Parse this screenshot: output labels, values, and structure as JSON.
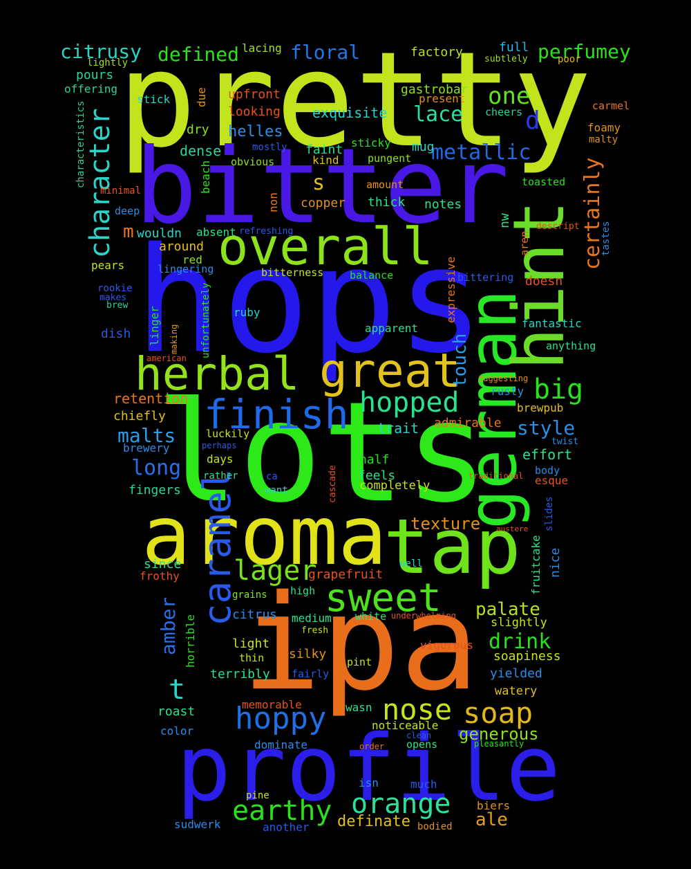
{
  "background": "#000000",
  "words": [
    {
      "text": "pretty",
      "color": "#c2e41c"
    },
    {
      "text": "bitter",
      "color": "#4a18e4"
    },
    {
      "text": "hops",
      "color": "#2418ea"
    },
    {
      "text": "lots",
      "color": "#2ee91a"
    },
    {
      "text": "ipa",
      "color": "#e86e1c"
    },
    {
      "text": "profile",
      "color": "#2a1ee8"
    },
    {
      "text": "aroma",
      "color": "#e2e21a"
    },
    {
      "text": "tap",
      "color": "#6ee21a"
    },
    {
      "text": "german",
      "color": "#28e826"
    },
    {
      "text": "hint",
      "color": "#6cdc2a"
    },
    {
      "text": "overall",
      "color": "#8ee21c"
    },
    {
      "text": "herbal",
      "color": "#94e21c"
    },
    {
      "text": "great",
      "color": "#e2c21c"
    },
    {
      "text": "finish",
      "color": "#1e6ae8"
    },
    {
      "text": "caramel",
      "color": "#2a5ae8"
    },
    {
      "text": "sweet",
      "color": "#4ee21c"
    },
    {
      "text": "hopped",
      "color": "#2ae28e"
    },
    {
      "text": "lager",
      "color": "#7ae21c"
    },
    {
      "text": "character",
      "color": "#2ad4c8"
    },
    {
      "text": "hoppy",
      "color": "#1e70e4"
    },
    {
      "text": "nose",
      "color": "#c8e21c"
    },
    {
      "text": "soap",
      "color": "#e2b81c"
    },
    {
      "text": "orange",
      "color": "#2ae29a"
    },
    {
      "text": "earthy",
      "color": "#2ae21c"
    },
    {
      "text": "big",
      "color": "#2ae21c"
    },
    {
      "text": "one",
      "color": "#62e21c"
    },
    {
      "text": "metallic",
      "color": "#1e6ae8"
    },
    {
      "text": "certainly",
      "color": "#e8761c"
    },
    {
      "text": "citrusy",
      "color": "#2ad4c0"
    },
    {
      "text": "defined",
      "color": "#2ae21c"
    },
    {
      "text": "floral",
      "color": "#1e7ae8"
    },
    {
      "text": "perfumey",
      "color": "#2ae21c"
    },
    {
      "text": "lace",
      "color": "#2ae2a0"
    },
    {
      "text": "malts",
      "color": "#2a9ee8"
    },
    {
      "text": "long",
      "color": "#2a6ee8"
    },
    {
      "text": "palate",
      "color": "#b8e21c"
    },
    {
      "text": "drink",
      "color": "#2ae21c"
    },
    {
      "text": "style",
      "color": "#2a8ee8"
    },
    {
      "text": "amber",
      "color": "#2a6ee8"
    },
    {
      "text": "touch",
      "color": "#2a9ee8"
    },
    {
      "text": "texture",
      "color": "#e2921c"
    },
    {
      "text": "ale",
      "color": "#e2a01c"
    },
    {
      "text": "generous",
      "color": "#8ee21c"
    },
    {
      "text": "definate",
      "color": "#e2c01c"
    },
    {
      "text": "t",
      "color": "#2ad4c8"
    },
    {
      "text": "m",
      "color": "#e8761c"
    },
    {
      "text": "d",
      "color": "#2a3ae8"
    },
    {
      "text": "s",
      "color": "#e2c01c"
    },
    {
      "text": "helles",
      "color": "#2a8ee8"
    },
    {
      "text": "exquisite",
      "color": "#2ad4c8"
    },
    {
      "text": "upfront",
      "color": "#e8521c"
    },
    {
      "text": "looking",
      "color": "#e8521c"
    },
    {
      "text": "factory",
      "color": "#b8e21c"
    },
    {
      "text": "full",
      "color": "#2ab8e8"
    },
    {
      "text": "subtlely",
      "color": "#9ee21c"
    },
    {
      "text": "poor",
      "color": "#e2b81c"
    },
    {
      "text": "lacing",
      "color": "#9ee21c"
    },
    {
      "text": "lightly",
      "color": "#9ee21c"
    },
    {
      "text": "pours",
      "color": "#2ad4a0"
    },
    {
      "text": "offering",
      "color": "#2ad4a0"
    },
    {
      "text": "stick",
      "color": "#2ad4c8"
    },
    {
      "text": "due",
      "color": "#e2921c"
    },
    {
      "text": "gastrobar",
      "color": "#8ee21c"
    },
    {
      "text": "present",
      "color": "#e2921c"
    },
    {
      "text": "cheers",
      "color": "#2ad4a0"
    },
    {
      "text": "carmel",
      "color": "#e8761c"
    },
    {
      "text": "foamy",
      "color": "#e2921c"
    },
    {
      "text": "malty",
      "color": "#e2921c"
    },
    {
      "text": "dry",
      "color": "#8ee21c"
    },
    {
      "text": "dense",
      "color": "#2ad4a0"
    },
    {
      "text": "mostly",
      "color": "#2a5ae8"
    },
    {
      "text": "obvious",
      "color": "#8ee21c"
    },
    {
      "text": "faint",
      "color": "#2ae28e"
    },
    {
      "text": "kind",
      "color": "#e2c01c"
    },
    {
      "text": "sticky",
      "color": "#2ae21c"
    },
    {
      "text": "pungent",
      "color": "#8ee21c"
    },
    {
      "text": "mug",
      "color": "#2ad4c8"
    },
    {
      "text": "characteristics",
      "color": "#2ad4a0"
    },
    {
      "text": "minimal",
      "color": "#e8521c"
    },
    {
      "text": "beach",
      "color": "#2ae21c"
    },
    {
      "text": "non",
      "color": "#e8761c"
    },
    {
      "text": "copper",
      "color": "#e2921c"
    },
    {
      "text": "amount",
      "color": "#e2921c"
    },
    {
      "text": "thick",
      "color": "#2ae28e"
    },
    {
      "text": "toasted",
      "color": "#2ae21c"
    },
    {
      "text": "nw",
      "color": "#2ae28e"
    },
    {
      "text": "notes",
      "color": "#2ae28e"
    },
    {
      "text": "deep",
      "color": "#2a8ee8"
    },
    {
      "text": "wouldn",
      "color": "#2ad4c8"
    },
    {
      "text": "absent",
      "color": "#2ae28e"
    },
    {
      "text": "refreshing",
      "color": "#2a5ae8"
    },
    {
      "text": "descript",
      "color": "#e8521c"
    },
    {
      "text": "tastes",
      "color": "#2a8ee8"
    },
    {
      "text": "aren",
      "color": "#e8761c"
    },
    {
      "text": "around",
      "color": "#e2c01c"
    },
    {
      "text": "red",
      "color": "#8ee21c"
    },
    {
      "text": "pears",
      "color": "#c8e21c"
    },
    {
      "text": "lingering",
      "color": "#2a8ee8"
    },
    {
      "text": "bitterness",
      "color": "#c8e21c"
    },
    {
      "text": "balance",
      "color": "#2ae21c"
    },
    {
      "text": "expressive",
      "color": "#e8761c"
    },
    {
      "text": "bittering",
      "color": "#2a5ae8"
    },
    {
      "text": "doesn",
      "color": "#e8521c"
    },
    {
      "text": "rookie",
      "color": "#2a5ae8"
    },
    {
      "text": "makes",
      "color": "#2a5ae8"
    },
    {
      "text": "brew",
      "color": "#2ad4a0"
    },
    {
      "text": "unfortunately",
      "color": "#2ae21c"
    },
    {
      "text": "ruby",
      "color": "#2ad4c8"
    },
    {
      "text": "dish",
      "color": "#2a5ae8"
    },
    {
      "text": "linger",
      "color": "#2ae21c"
    },
    {
      "text": "making",
      "color": "#e2921c"
    },
    {
      "text": "american",
      "color": "#e8521c"
    },
    {
      "text": "apparent",
      "color": "#2ae28e"
    },
    {
      "text": "fantastic",
      "color": "#2ad4c8"
    },
    {
      "text": "anything",
      "color": "#2ae28e"
    },
    {
      "text": "suggesting",
      "color": "#e2921c"
    },
    {
      "text": "retention",
      "color": "#e8761c"
    },
    {
      "text": "rusty",
      "color": "#2a8ee8"
    },
    {
      "text": "brewpub",
      "color": "#e2c01c"
    },
    {
      "text": "chiefly",
      "color": "#e2c01c"
    },
    {
      "text": "admirable",
      "color": "#e8761c"
    },
    {
      "text": "trait",
      "color": "#2ad4c8"
    },
    {
      "text": "luckily",
      "color": "#c8e21c"
    },
    {
      "text": "twist",
      "color": "#2a8ee8"
    },
    {
      "text": "brewery",
      "color": "#2a8ee8"
    },
    {
      "text": "perhaps",
      "color": "#2a5ae8"
    },
    {
      "text": "effort",
      "color": "#2ae28e"
    },
    {
      "text": "days",
      "color": "#c8e21c"
    },
    {
      "text": "half",
      "color": "#2ae21c"
    },
    {
      "text": "cascade",
      "color": "#e8521c"
    },
    {
      "text": "body",
      "color": "#2a8ee8"
    },
    {
      "text": "rather",
      "color": "#2ae28e"
    },
    {
      "text": "ca",
      "color": "#2a5ae8"
    },
    {
      "text": "feels",
      "color": "#2ae28e"
    },
    {
      "text": "traditional",
      "color": "#e8521c"
    },
    {
      "text": "esque",
      "color": "#e8521c"
    },
    {
      "text": "fingers",
      "color": "#2ad4a0"
    },
    {
      "text": "want",
      "color": "#2ad4c8"
    },
    {
      "text": "completely",
      "color": "#c8e21c"
    },
    {
      "text": "slides",
      "color": "#2a5ae8"
    },
    {
      "text": "austere",
      "color": "#e8521c"
    },
    {
      "text": "fruitcake",
      "color": "#2ae28e"
    },
    {
      "text": "nice",
      "color": "#2a8ee8"
    },
    {
      "text": "since",
      "color": "#2ae28e"
    },
    {
      "text": "frothy",
      "color": "#e8521c"
    },
    {
      "text": "grapefruit",
      "color": "#e8521c"
    },
    {
      "text": "well",
      "color": "#2ad4c8"
    },
    {
      "text": "grains",
      "color": "#8ee21c"
    },
    {
      "text": "high",
      "color": "#2ae28e"
    },
    {
      "text": "citrus",
      "color": "#2a8ee8"
    },
    {
      "text": "medium",
      "color": "#2ae28e"
    },
    {
      "text": "white",
      "color": "#2ae28e"
    },
    {
      "text": "underwhelming",
      "color": "#e8521c"
    },
    {
      "text": "slightly",
      "color": "#c8e21c"
    },
    {
      "text": "horrible",
      "color": "#2ae21c"
    },
    {
      "text": "fresh",
      "color": "#c8e21c"
    },
    {
      "text": "light",
      "color": "#c8e21c"
    },
    {
      "text": "vigorous",
      "color": "#e8521c"
    },
    {
      "text": "silky",
      "color": "#e2921c"
    },
    {
      "text": "thin",
      "color": "#c8e21c"
    },
    {
      "text": "soapiness",
      "color": "#c8e21c"
    },
    {
      "text": "pint",
      "color": "#c8e21c"
    },
    {
      "text": "terribly",
      "color": "#2ae28e"
    },
    {
      "text": "fairly",
      "color": "#2a5ae8"
    },
    {
      "text": "yielded",
      "color": "#2a8ee8"
    },
    {
      "text": "watery",
      "color": "#e2c01c"
    },
    {
      "text": "roast",
      "color": "#2ae28e"
    },
    {
      "text": "memorable",
      "color": "#e8521c"
    },
    {
      "text": "wasn",
      "color": "#2ae28e"
    },
    {
      "text": "color",
      "color": "#2a8ee8"
    },
    {
      "text": "noticeable",
      "color": "#c8e21c"
    },
    {
      "text": "dominate",
      "color": "#2a8ee8"
    },
    {
      "text": "order",
      "color": "#e8761c"
    },
    {
      "text": "clean",
      "color": "#2a5ae8"
    },
    {
      "text": "opens",
      "color": "#2ae28e"
    },
    {
      "text": "pleasantly",
      "color": "#2ae21c"
    },
    {
      "text": "isn",
      "color": "#2a8ee8"
    },
    {
      "text": "much",
      "color": "#2a5ae8"
    },
    {
      "text": "pine",
      "color": "#c8e21c"
    },
    {
      "text": "biers",
      "color": "#e2921c"
    },
    {
      "text": "sudwerk",
      "color": "#2a8ee8"
    },
    {
      "text": "another",
      "color": "#2a5ae8"
    },
    {
      "text": "bodied",
      "color": "#e2921c"
    }
  ]
}
